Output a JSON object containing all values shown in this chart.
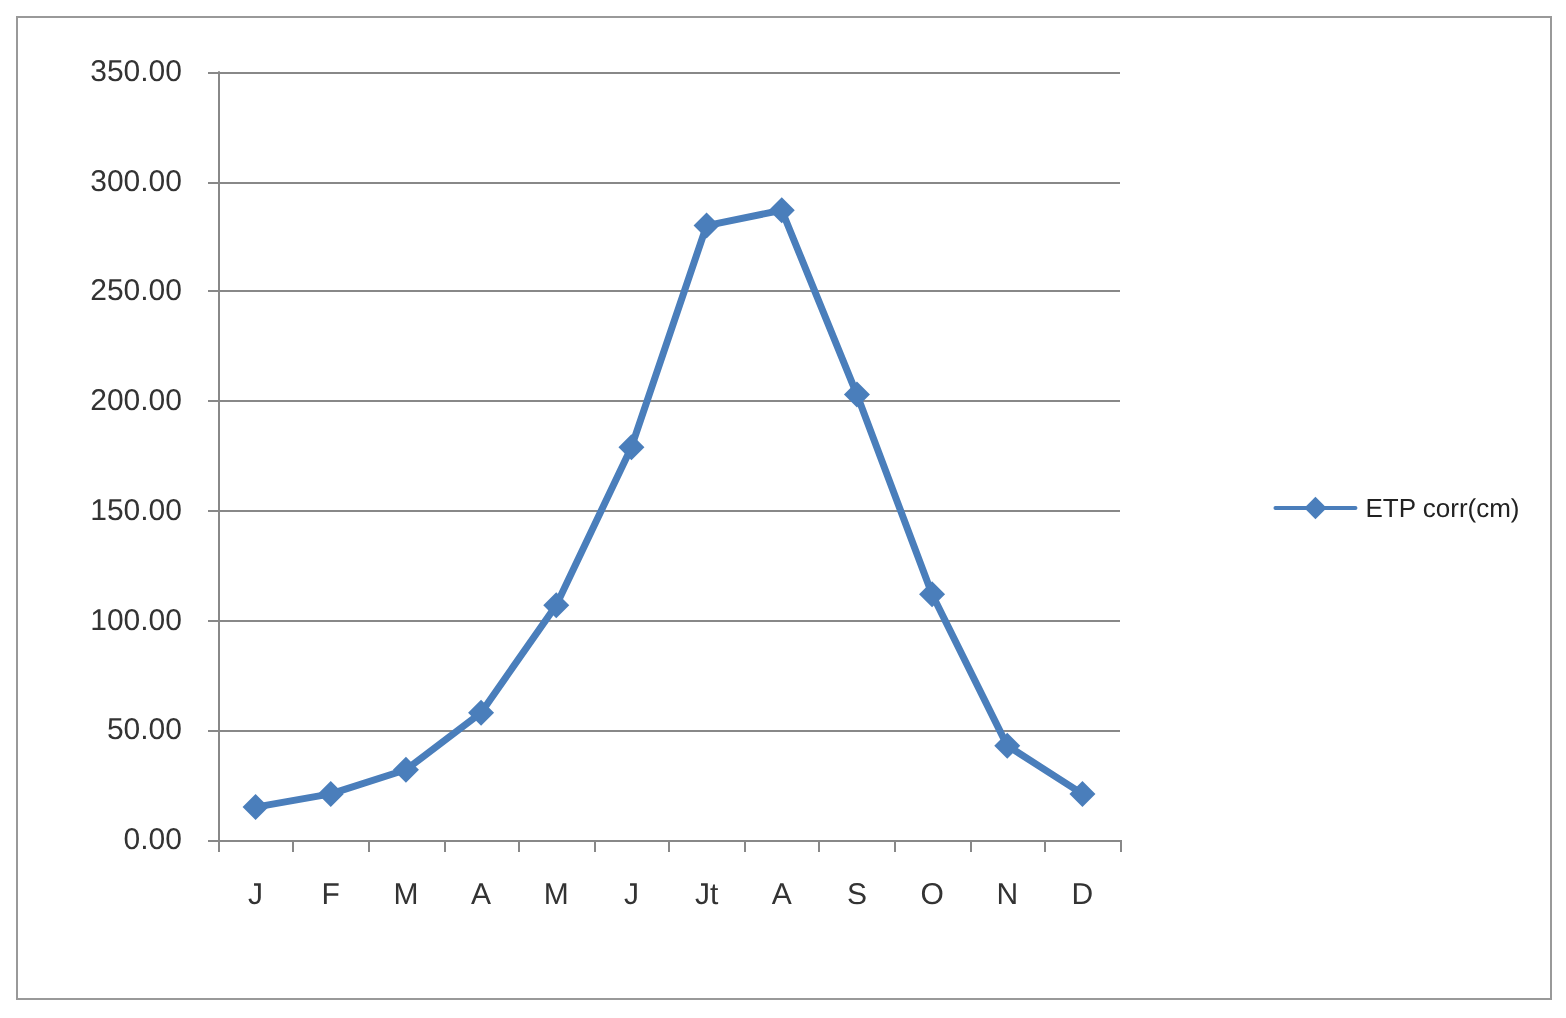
{
  "chart_data": {
    "type": "line",
    "categories": [
      "J",
      "F",
      "M",
      "A",
      "M",
      "J",
      "Jt",
      "A",
      "S",
      "O",
      "N",
      "D"
    ],
    "series": [
      {
        "name": "ETP corr(cm)",
        "color": "#4a7ebb",
        "values": [
          15,
          21,
          32,
          58,
          107,
          179,
          280,
          287,
          203,
          112,
          43,
          21
        ]
      }
    ],
    "ylim": [
      0,
      350
    ],
    "yticks": [
      {
        "value": 0,
        "label": "0.00"
      },
      {
        "value": 50,
        "label": "50.00"
      },
      {
        "value": 100,
        "label": "100.00"
      },
      {
        "value": 150,
        "label": "150.00"
      },
      {
        "value": 200,
        "label": "200.00"
      },
      {
        "value": 250,
        "label": "250.00"
      },
      {
        "value": 300,
        "label": "300.00"
      },
      {
        "value": 350,
        "label": "350.00"
      }
    ],
    "grid": "y",
    "legend": "right",
    "marker": "diamond",
    "line_style": "solid"
  }
}
